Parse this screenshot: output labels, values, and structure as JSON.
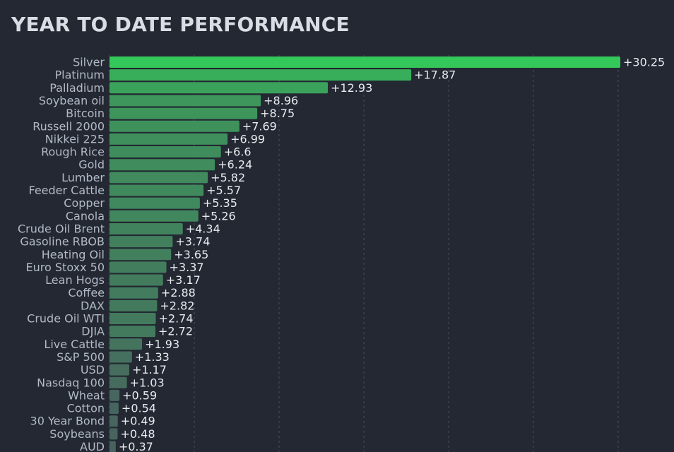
{
  "chart_data": {
    "type": "bar",
    "orientation": "horizontal",
    "title": "YEAR TO DATE PERFORMANCE",
    "xlabel": "",
    "ylabel": "",
    "xlim": [
      0,
      30.25
    ],
    "grid": true,
    "categories": [
      "Silver",
      "Platinum",
      "Palladium",
      "Soybean oil",
      "Bitcoin",
      "Russell 2000",
      "Nikkei 225",
      "Rough Rice",
      "Gold",
      "Lumber",
      "Feeder Cattle",
      "Copper",
      "Canola",
      "Crude Oil Brent",
      "Gasoline RBOB",
      "Heating Oil",
      "Euro Stoxx 50",
      "Lean Hogs",
      "Coffee",
      "DAX",
      "Crude Oil WTI",
      "DJIA",
      "Live Cattle",
      "S&P 500",
      "USD",
      "Nasdaq 100",
      "Wheat",
      "Cotton",
      "30 Year Bond",
      "Soybeans",
      "AUD"
    ],
    "values": [
      30.25,
      17.87,
      12.93,
      8.96,
      8.75,
      7.69,
      6.99,
      6.6,
      6.24,
      5.82,
      5.57,
      5.35,
      5.26,
      4.34,
      3.74,
      3.65,
      3.37,
      3.17,
      2.88,
      2.82,
      2.74,
      2.72,
      1.93,
      1.33,
      1.17,
      1.03,
      0.59,
      0.54,
      0.49,
      0.48,
      0.37
    ],
    "value_labels": [
      "+30.25",
      "+17.87",
      "+12.93",
      "+8.96",
      "+8.75",
      "+7.69",
      "+6.99",
      "+6.6",
      "+6.24",
      "+5.82",
      "+5.57",
      "+5.35",
      "+5.26",
      "+4.34",
      "+3.74",
      "+3.65",
      "+3.37",
      "+3.17",
      "+2.88",
      "+2.82",
      "+2.74",
      "+2.72",
      "+1.93",
      "+1.33",
      "+1.17",
      "+1.03",
      "+0.59",
      "+0.54",
      "+0.49",
      "+0.48",
      "+0.37"
    ],
    "colors": {
      "background": "#232832",
      "bar_high": "#34c759",
      "bar_low": "#4b5260"
    }
  }
}
